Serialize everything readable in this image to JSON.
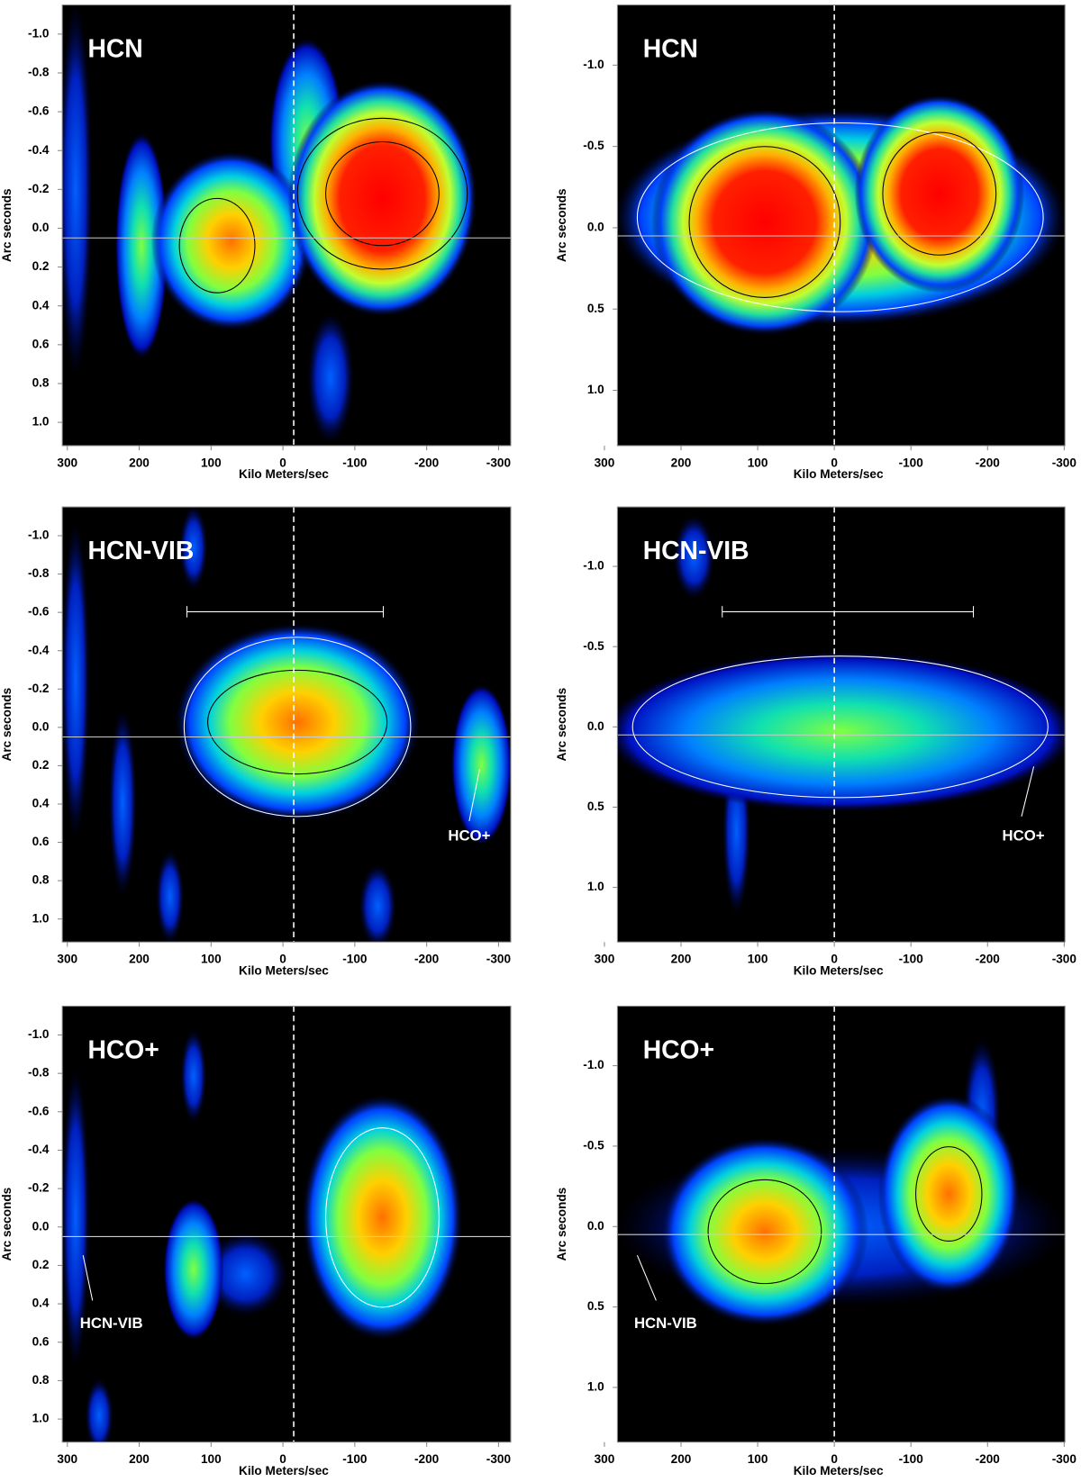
{
  "chart_data": [
    {
      "type": "heatmap",
      "title": "HCN",
      "xlabel": "Kilo Meters/sec",
      "ylabel": "Arc seconds",
      "xlim": [
        307,
        -317
      ],
      "ylim": [
        -1.15,
        1.12
      ],
      "xticks": [
        300,
        200,
        100,
        0,
        -100,
        -200,
        -300
      ],
      "yticks": [
        {
          "value": -1.0,
          "label": "-1.0"
        },
        -0.8,
        -0.6,
        -0.4,
        -0.2,
        {
          "value": 0.0,
          "label": "0.0"
        },
        0.2,
        0.4,
        0.6,
        0.8,
        {
          "value": 1.0,
          "label": "1.0"
        }
      ]
    },
    {
      "type": "heatmap",
      "title": "HCN",
      "xlabel": "Kilo Meters/sec",
      "ylabel": "Arc seconds",
      "xlim": [
        283,
        -301
      ],
      "ylim": [
        -1.37,
        1.34
      ],
      "xticks": [
        300,
        200,
        100,
        0,
        -100,
        -200,
        -300
      ],
      "yticks": [
        {
          "value": -1.0,
          "label": "-1.0"
        },
        -0.5,
        {
          "value": 0.0,
          "label": "0.0"
        },
        0.5,
        {
          "value": 1.0,
          "label": "1.0"
        }
      ]
    },
    {
      "type": "heatmap",
      "title": "HCN-VIB",
      "xlabel": "Kilo Meters/sec",
      "ylabel": "Arc seconds",
      "annotations": [
        "HCO+"
      ],
      "xlim": [
        307,
        -317
      ],
      "ylim": [
        -1.15,
        1.12
      ],
      "xticks": [
        300,
        200,
        100,
        0,
        -100,
        -200,
        -300
      ],
      "yticks": [
        {
          "value": -1.0,
          "label": "-1.0"
        },
        -0.8,
        -0.6,
        -0.4,
        -0.2,
        {
          "value": 0.0,
          "label": "0.0"
        },
        0.2,
        0.4,
        0.6,
        0.8,
        {
          "value": 1.0,
          "label": "1.0"
        }
      ]
    },
    {
      "type": "heatmap",
      "title": "HCN-VIB",
      "xlabel": "Kilo Meters/sec",
      "ylabel": "Arc seconds",
      "annotations": [
        "HCO+"
      ],
      "xlim": [
        283,
        -301
      ],
      "ylim": [
        -1.37,
        1.34
      ],
      "xticks": [
        300,
        200,
        100,
        0,
        -100,
        -200,
        -300
      ],
      "yticks": [
        {
          "value": -1.0,
          "label": "-1.0"
        },
        -0.5,
        {
          "value": 0.0,
          "label": "0.0"
        },
        0.5,
        {
          "value": 1.0,
          "label": "1.0"
        }
      ]
    },
    {
      "type": "heatmap",
      "title": "HCO+",
      "xlabel": "Kilo Meters/sec",
      "ylabel": "Arc seconds",
      "annotations": [
        "HCN-VIB"
      ],
      "xlim": [
        307,
        -317
      ],
      "ylim": [
        -1.15,
        1.12
      ],
      "xticks": [
        300,
        200,
        100,
        0,
        -100,
        -200,
        -300
      ],
      "yticks": [
        {
          "value": -1.0,
          "label": "-1.0"
        },
        -0.8,
        -0.6,
        -0.4,
        -0.2,
        {
          "value": 0.0,
          "label": "0.0"
        },
        0.2,
        0.4,
        0.6,
        0.8,
        {
          "value": 1.0,
          "label": "1.0"
        }
      ]
    },
    {
      "type": "heatmap",
      "title": "HCO+",
      "xlabel": "Kilo Meters/sec",
      "ylabel": "Arc seconds",
      "annotations": [
        "HCN-VIB"
      ],
      "xlim": [
        283,
        -301
      ],
      "ylim": [
        -1.37,
        1.34
      ],
      "xticks": [
        300,
        200,
        100,
        0,
        -100,
        -200,
        -300
      ],
      "yticks": [
        {
          "value": -1.0,
          "label": "-1.0"
        },
        -0.5,
        {
          "value": 0.0,
          "label": "0.0"
        },
        0.5,
        {
          "value": 1.0,
          "label": "1.0"
        }
      ]
    }
  ]
}
